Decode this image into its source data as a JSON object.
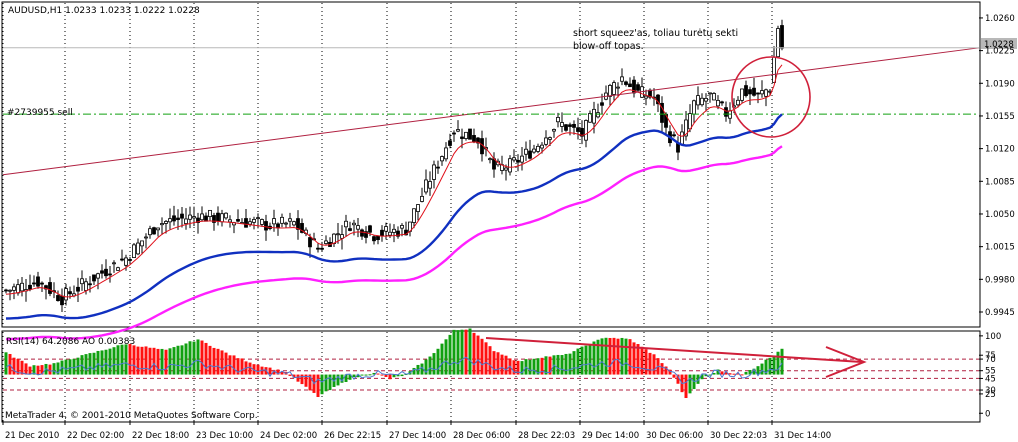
{
  "window": {
    "title": "AUDUSD,H1  1.0233 1.0233 1.0222 1.0228",
    "footer": "MetaTrader 4, © 2001-2010 MetaQuotes Software Corp.",
    "order_label": "#2739955 sell",
    "annotation_line1": "short squeez'as, toliau turėtų sekti",
    "annotation_line2": "blow-off topas.",
    "price_tag": "1.0228",
    "indicator_title": "RSI(14) 64.2086  AO 0.00383"
  },
  "colors": {
    "bull_candle": "#ffffff",
    "bear_candle": "#000000",
    "ma_fast": "#e0101a",
    "ma_mid": "#1030c0",
    "ma_slow": "#ff20ff",
    "ao_up": "#10a010",
    "ao_down": "#ff1010",
    "rsi": "#4a78d0",
    "trendline": "#b02040",
    "order_line": "#10a010",
    "annotation_circle": "#d0203a"
  },
  "chart_data": [
    {
      "type": "candlestick",
      "symbol": "AUDUSD",
      "timeframe": "H1",
      "ohlc_last": {
        "open": 1.0233,
        "high": 1.0233,
        "low": 1.0222,
        "close": 1.0228
      },
      "ylim": [
        0.993,
        1.0276
      ],
      "y_ticks": [
        "1.0260",
        "1.0225",
        "1.0190",
        "1.0155",
        "1.0120",
        "1.0085",
        "1.0050",
        "1.0015",
        "0.9980",
        "0.9945"
      ],
      "x_ticks": [
        "21 Dec 2010",
        "22 Dec 02:00",
        "22 Dec 18:00",
        "23 Dec 10:00",
        "24 Dec 02:00",
        "26 Dec 22:15",
        "27 Dec 14:00",
        "28 Dec 06:00",
        "28 Dec 22:03",
        "29 Dec 14:00",
        "30 Dec 06:00",
        "30 Dec 22:03",
        "31 Dec 14:00"
      ],
      "anchors": [
        {
          "t": 0,
          "p": 0.9968
        },
        {
          "t": 8,
          "p": 0.9978
        },
        {
          "t": 14,
          "p": 0.996
        },
        {
          "t": 22,
          "p": 0.9982
        },
        {
          "t": 30,
          "p": 1.0003
        },
        {
          "t": 38,
          "p": 1.004
        },
        {
          "t": 48,
          "p": 1.0048
        },
        {
          "t": 58,
          "p": 1.0043
        },
        {
          "t": 66,
          "p": 1.0038
        },
        {
          "t": 72,
          "p": 1.004
        },
        {
          "t": 78,
          "p": 1.0013
        },
        {
          "t": 86,
          "p": 1.004
        },
        {
          "t": 92,
          "p": 1.0028
        },
        {
          "t": 100,
          "p": 1.0034
        },
        {
          "t": 106,
          "p": 1.0088
        },
        {
          "t": 112,
          "p": 1.014
        },
        {
          "t": 118,
          "p": 1.013
        },
        {
          "t": 122,
          "p": 1.0098
        },
        {
          "t": 126,
          "p": 1.0102
        },
        {
          "t": 132,
          "p": 1.012
        },
        {
          "t": 138,
          "p": 1.0148
        },
        {
          "t": 144,
          "p": 1.0135
        },
        {
          "t": 150,
          "p": 1.018
        },
        {
          "t": 154,
          "p": 1.0196
        },
        {
          "t": 158,
          "p": 1.018
        },
        {
          "t": 162,
          "p": 1.0175
        },
        {
          "t": 165,
          "p": 1.014
        },
        {
          "t": 168,
          "p": 1.0122
        },
        {
          "t": 172,
          "p": 1.0168
        },
        {
          "t": 176,
          "p": 1.0176
        },
        {
          "t": 180,
          "p": 1.0158
        },
        {
          "t": 184,
          "p": 1.0182
        },
        {
          "t": 188,
          "p": 1.0176
        },
        {
          "t": 191,
          "p": 1.0186
        },
        {
          "t": 193,
          "p": 1.025
        },
        {
          "t": 194,
          "p": 1.0228
        }
      ],
      "trendline": {
        "from": {
          "t": 0,
          "p": 1.0092
        },
        "to": {
          "t": 260,
          "p": 1.0228
        }
      },
      "order_level": 1.0157,
      "note": "short squeez'as, toliau turėtų sekti blow-off topas."
    },
    {
      "type": "bar",
      "name": "RSI(14) 64.2086  AO 0.00383",
      "rsi_last": 64.2086,
      "ao_last": 0.00383,
      "rsi_levels": [
        70,
        55,
        45,
        30
      ],
      "ylim": [
        -10,
        105
      ],
      "y_ticks": [
        "100",
        "75",
        "70",
        "55",
        "45",
        "30",
        "25",
        "0"
      ],
      "ao_anchors": [
        {
          "t": 0,
          "v": 0.5
        },
        {
          "t": 6,
          "v": 0.2
        },
        {
          "t": 12,
          "v": 0.25
        },
        {
          "t": 20,
          "v": 0.45
        },
        {
          "t": 30,
          "v": 0.7
        },
        {
          "t": 40,
          "v": 0.55
        },
        {
          "t": 48,
          "v": 0.8
        },
        {
          "t": 56,
          "v": 0.45
        },
        {
          "t": 62,
          "v": 0.25
        },
        {
          "t": 70,
          "v": 0.05
        },
        {
          "t": 78,
          "v": -0.5
        },
        {
          "t": 86,
          "v": -0.1
        },
        {
          "t": 92,
          "v": 0.05
        },
        {
          "t": 96,
          "v": -0.1
        },
        {
          "t": 100,
          "v": 0.0
        },
        {
          "t": 106,
          "v": 0.4
        },
        {
          "t": 112,
          "v": 1.0
        },
        {
          "t": 116,
          "v": 1.05
        },
        {
          "t": 122,
          "v": 0.55
        },
        {
          "t": 128,
          "v": 0.3
        },
        {
          "t": 134,
          "v": 0.4
        },
        {
          "t": 140,
          "v": 0.45
        },
        {
          "t": 146,
          "v": 0.7
        },
        {
          "t": 150,
          "v": 0.85
        },
        {
          "t": 156,
          "v": 0.8
        },
        {
          "t": 162,
          "v": 0.45
        },
        {
          "t": 166,
          "v": 0.1
        },
        {
          "t": 170,
          "v": -0.55
        },
        {
          "t": 174,
          "v": -0.1
        },
        {
          "t": 178,
          "v": 0.1
        },
        {
          "t": 184,
          "v": 0.0
        },
        {
          "t": 188,
          "v": 0.2
        },
        {
          "t": 192,
          "v": 0.45
        },
        {
          "t": 194,
          "v": 0.6
        }
      ]
    }
  ]
}
